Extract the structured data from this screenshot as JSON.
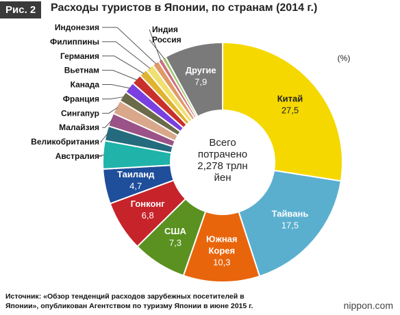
{
  "header": {
    "badge": "Рис. 2",
    "title": "Расходы туристов в Японии, по странам (2014 г.)"
  },
  "chart_data": {
    "type": "pie",
    "style": "donut",
    "unit_label": "(%)",
    "center_lines": [
      "Всего",
      "потрачено",
      "2,278 трлн",
      "йен"
    ],
    "slices": [
      {
        "label": "Китай",
        "value": 27.5,
        "value_text": "27,5",
        "color": "#f5d800",
        "label_inside": true,
        "text_color": "#222222"
      },
      {
        "label": "Тайвань",
        "value": 17.5,
        "value_text": "17,5",
        "color": "#5aafcf",
        "label_inside": true,
        "text_color": "#ffffff"
      },
      {
        "label": "Южная Корея",
        "label_lines": [
          "Южная",
          "Корея"
        ],
        "value": 10.3,
        "value_text": "10,3",
        "color": "#e8650c",
        "label_inside": true,
        "text_color": "#ffffff"
      },
      {
        "label": "США",
        "value": 7.3,
        "value_text": "7,3",
        "color": "#5a9120",
        "label_inside": true,
        "text_color": "#ffffff"
      },
      {
        "label": "Гонконг",
        "value": 6.8,
        "value_text": "6,8",
        "color": "#c7232a",
        "label_inside": true,
        "text_color": "#ffffff"
      },
      {
        "label": "Таиланд",
        "value": 4.7,
        "value_text": "4,7",
        "color": "#1f4e9a",
        "label_inside": true,
        "text_color": "#ffffff"
      },
      {
        "label": "Австралия",
        "value": 3.8,
        "color": "#1fb3a9",
        "label_inside": false
      },
      {
        "label": "Великобритания",
        "value": 2.0,
        "color": "#236b7d",
        "label_inside": false
      },
      {
        "label": "Малайзия",
        "value": 1.8,
        "color": "#9a5287",
        "label_inside": false
      },
      {
        "label": "Сингапур",
        "value": 1.9,
        "color": "#d9a88a",
        "label_inside": false
      },
      {
        "label": "Франция",
        "value": 1.4,
        "color": "#6b6b49",
        "label_inside": false
      },
      {
        "label": "Канада",
        "value": 1.5,
        "color": "#7a3fe0",
        "label_inside": false
      },
      {
        "label": "Вьетнам",
        "value": 1.4,
        "color": "#c9302c",
        "label_inside": false
      },
      {
        "label": "Германия",
        "value": 1.1,
        "color": "#e0b430",
        "label_inside": false
      },
      {
        "label": "Филиппины",
        "value": 1.1,
        "color": "#f0e070",
        "label_inside": false
      },
      {
        "label": "Индонезия",
        "value": 0.9,
        "color": "#e09a66",
        "label_inside": false
      },
      {
        "label": "Индия",
        "value": 0.6,
        "color": "#cf6f7f",
        "label_inside": false
      },
      {
        "label": "Россия",
        "value": 0.5,
        "color": "#9bc76a",
        "label_inside": false
      },
      {
        "label": "Другие",
        "value": 7.9,
        "value_text": "7,9",
        "color": "#7a7a7a",
        "label_inside": true,
        "text_color": "#ffffff"
      }
    ]
  },
  "footer": {
    "source_line1": "Источник: «Обзор тенденций расходов зарубежных посетителей в",
    "source_line2": "Японии», опубликован Агентством по туризму Японии в июне 2015 г.",
    "brand": "nippon.com"
  }
}
